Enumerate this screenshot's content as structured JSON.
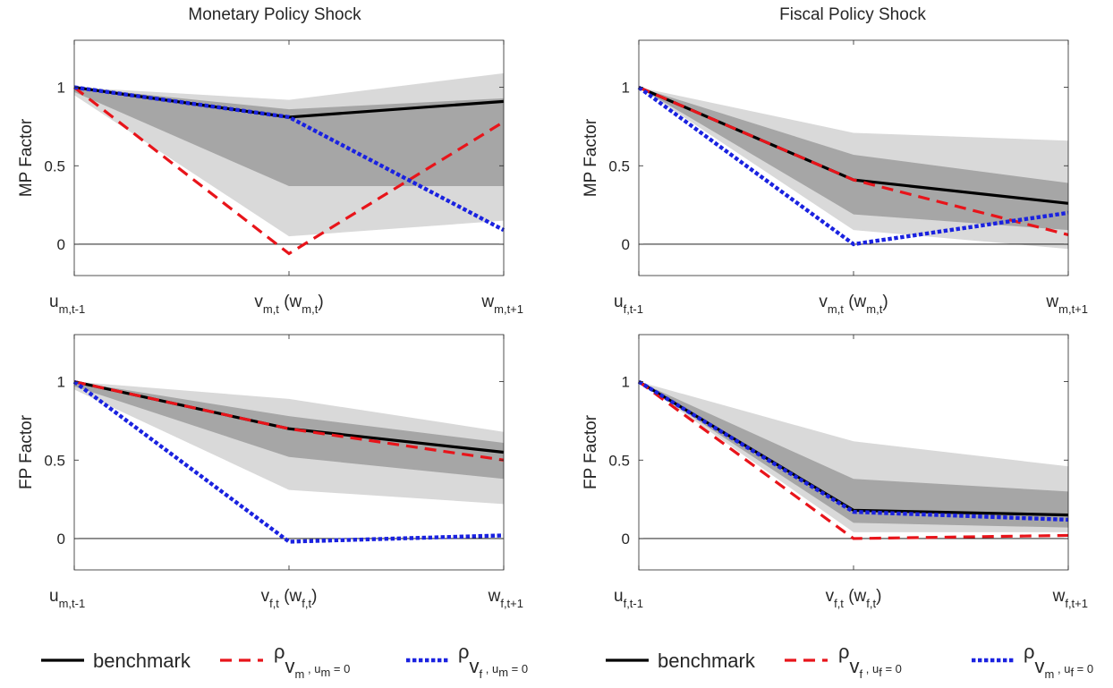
{
  "column_titles": [
    "Monetary Policy Shock",
    "Fiscal Policy Shock"
  ],
  "colors": {
    "outer_band": "#d9d9d9",
    "inner_band": "#a6a6a6",
    "benchmark": "#000000",
    "restricted_1": "#e8141a",
    "restricted_2": "#1a22e0",
    "zero_line": "#000000"
  },
  "chart_data": [
    {
      "type": "line",
      "title": "Monetary Policy Shock",
      "ylabel": "MP Factor",
      "ylim": [
        -0.2,
        1.3
      ],
      "yticks": [
        0,
        0.5,
        1
      ],
      "ytick_labels": [
        "0",
        "0.5",
        "1"
      ],
      "x": [
        0,
        1,
        2
      ],
      "xtick_labels": [
        {
          "sym": "u",
          "sub": "m,t-1"
        },
        {
          "sym": "v",
          "sub": "m,t",
          "mid": " (w",
          "sub2": "m,t",
          "end": ")"
        },
        {
          "sym": "w",
          "sub": "m,t+1"
        }
      ],
      "bands": {
        "outer": {
          "lower": [
            0.95,
            0.05,
            0.15
          ],
          "upper": [
            1.0,
            0.92,
            1.09
          ]
        },
        "inner": {
          "lower": [
            0.97,
            0.37,
            0.37
          ],
          "upper": [
            1.0,
            0.86,
            0.93
          ]
        }
      },
      "series": [
        {
          "name": "benchmark",
          "style": "solid",
          "values": [
            1.0,
            0.81,
            0.91
          ]
        },
        {
          "style": "dashed",
          "values": [
            1.0,
            -0.06,
            0.78
          ]
        },
        {
          "style": "dotted",
          "values": [
            1.0,
            0.81,
            0.09
          ]
        }
      ]
    },
    {
      "type": "line",
      "title": "Fiscal Policy Shock",
      "ylabel": "MP Factor",
      "ylim": [
        -0.2,
        1.3
      ],
      "yticks": [
        0,
        0.5,
        1
      ],
      "ytick_labels": [
        "0",
        "0.5",
        "1"
      ],
      "x": [
        0,
        1,
        2
      ],
      "xtick_labels": [
        {
          "sym": "u",
          "sub": "f,t-1"
        },
        {
          "sym": "v",
          "sub": "m,t",
          "mid": " (w",
          "sub2": "m,t",
          "end": ")"
        },
        {
          "sym": "w",
          "sub": "m,t+1"
        }
      ],
      "bands": {
        "outer": {
          "lower": [
            1.0,
            0.09,
            -0.03
          ],
          "upper": [
            1.0,
            0.71,
            0.66
          ]
        },
        "inner": {
          "lower": [
            1.0,
            0.19,
            0.09
          ],
          "upper": [
            1.0,
            0.57,
            0.39
          ]
        }
      },
      "series": [
        {
          "name": "benchmark",
          "style": "solid",
          "values": [
            1.0,
            0.41,
            0.26
          ]
        },
        {
          "style": "dashed",
          "values": [
            1.0,
            0.41,
            0.06
          ]
        },
        {
          "style": "dotted",
          "values": [
            1.0,
            0.0,
            0.2
          ]
        }
      ]
    },
    {
      "type": "line",
      "title": "",
      "ylabel": "FP Factor",
      "ylim": [
        -0.2,
        1.3
      ],
      "yticks": [
        0,
        0.5,
        1
      ],
      "ytick_labels": [
        "0",
        "0.5",
        "1"
      ],
      "x": [
        0,
        1,
        2
      ],
      "xtick_labels": [
        {
          "sym": "u",
          "sub": "m,t-1"
        },
        {
          "sym": "v",
          "sub": "f,t",
          "mid": " (w",
          "sub2": "f,t",
          "end": ")"
        },
        {
          "sym": "w",
          "sub": "f,t+1"
        }
      ],
      "bands": {
        "outer": {
          "lower": [
            0.95,
            0.31,
            0.22
          ],
          "upper": [
            1.0,
            0.89,
            0.68
          ]
        },
        "inner": {
          "lower": [
            0.97,
            0.52,
            0.38
          ],
          "upper": [
            1.0,
            0.78,
            0.61
          ]
        }
      },
      "series": [
        {
          "name": "benchmark",
          "style": "solid",
          "values": [
            1.0,
            0.7,
            0.55
          ]
        },
        {
          "style": "dashed",
          "values": [
            1.0,
            0.7,
            0.5
          ]
        },
        {
          "style": "dotted",
          "values": [
            1.0,
            -0.02,
            0.02
          ]
        }
      ]
    },
    {
      "type": "line",
      "title": "",
      "ylabel": "FP Factor",
      "ylim": [
        -0.2,
        1.3
      ],
      "yticks": [
        0,
        0.5,
        1
      ],
      "ytick_labels": [
        "0",
        "0.5",
        "1"
      ],
      "x": [
        0,
        1,
        2
      ],
      "xtick_labels": [
        {
          "sym": "u",
          "sub": "f,t-1"
        },
        {
          "sym": "v",
          "sub": "f,t",
          "mid": " (w",
          "sub2": "f,t",
          "end": ")"
        },
        {
          "sym": "w",
          "sub": "f,t+1"
        }
      ],
      "bands": {
        "outer": {
          "lower": [
            1.0,
            0.04,
            0.04
          ],
          "upper": [
            1.0,
            0.62,
            0.46
          ]
        },
        "inner": {
          "lower": [
            1.0,
            0.1,
            0.07
          ],
          "upper": [
            1.0,
            0.38,
            0.3
          ]
        }
      },
      "series": [
        {
          "name": "benchmark",
          "style": "solid",
          "values": [
            1.0,
            0.18,
            0.15
          ]
        },
        {
          "style": "dashed",
          "values": [
            1.0,
            0.0,
            0.02
          ]
        },
        {
          "style": "dotted",
          "values": [
            1.0,
            0.17,
            0.12
          ]
        }
      ]
    }
  ],
  "legends": [
    {
      "items": [
        {
          "style": "solid",
          "label": "benchmark"
        },
        {
          "style": "dashed",
          "rho": "ρ",
          "rho_sub": "v",
          "rho_sub2": "m",
          "rest": " , u",
          "rest_sub": "m",
          "tail": " = 0"
        },
        {
          "style": "dotted",
          "rho": "ρ",
          "rho_sub": "v",
          "rho_sub2": "f",
          "rest": " , u",
          "rest_sub": "m",
          "tail": " = 0"
        }
      ]
    },
    {
      "items": [
        {
          "style": "solid",
          "label": "benchmark"
        },
        {
          "style": "dashed",
          "rho": "ρ",
          "rho_sub": "v",
          "rho_sub2": "f",
          "rest": " , u",
          "rest_sub": "f",
          "tail": " = 0"
        },
        {
          "style": "dotted",
          "rho": "ρ",
          "rho_sub": "v",
          "rho_sub2": "m",
          "rest": " , u",
          "rest_sub": "f",
          "tail": " = 0"
        }
      ]
    }
  ]
}
